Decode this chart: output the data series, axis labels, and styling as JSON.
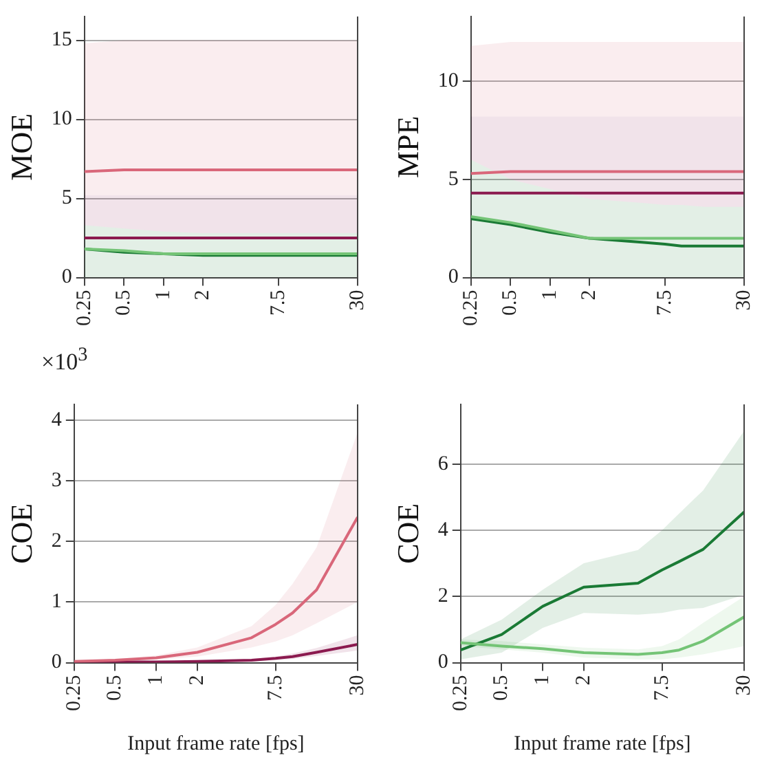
{
  "chart_data": [
    {
      "type": "line",
      "ylabel": "MOE",
      "log": "x",
      "grid": "y",
      "legend": false,
      "x": [
        0.25,
        0.5,
        1,
        2,
        5,
        7.5,
        10,
        15,
        30
      ],
      "xlim": [
        0.25,
        30
      ],
      "xticks": [
        0.25,
        0.5,
        1,
        2,
        7.5,
        30
      ],
      "ylim": [
        0,
        16.5
      ],
      "yticks": [
        0,
        5,
        10,
        15
      ],
      "series": [
        {
          "color": "#d9677a",
          "values": [
            6.7,
            6.8,
            6.8,
            6.8,
            6.8,
            6.8,
            6.8,
            6.8,
            6.8
          ],
          "lower": [
            5.2,
            5.2,
            5.2,
            5.2,
            5.2,
            5.2,
            5.2,
            5.2,
            5.2
          ],
          "upper": [
            14.8,
            15,
            15,
            15,
            15,
            15,
            15,
            15,
            15
          ]
        },
        {
          "color": "#8b1a4f",
          "values": [
            2.5,
            2.5,
            2.5,
            2.5,
            2.5,
            2.5,
            2.5,
            2.5,
            2.5
          ],
          "lower": [
            3.3,
            3.1,
            2.9,
            2.8,
            2.8,
            2.8,
            2.8,
            2.8,
            2.8
          ],
          "upper": [
            5.2,
            5.2,
            5.2,
            5.2,
            5.2,
            5.2,
            5.2,
            5.2,
            5.2
          ]
        },
        {
          "color": "#74c476",
          "values": [
            1.8,
            1.7,
            1.5,
            1.5,
            1.5,
            1.5,
            1.5,
            1.5,
            1.5
          ]
        },
        {
          "color": "#1a7a35",
          "values": [
            1.8,
            1.6,
            1.5,
            1.4,
            1.4,
            1.4,
            1.4,
            1.4,
            1.4
          ],
          "lower": [
            0,
            0,
            0,
            0,
            0,
            0,
            0,
            0,
            0
          ],
          "upper": [
            3.3,
            3.1,
            2.9,
            2.8,
            2.8,
            2.8,
            2.8,
            2.8,
            2.8
          ]
        }
      ]
    },
    {
      "type": "line",
      "ylabel": "MPE",
      "log": "x",
      "grid": "y",
      "legend": false,
      "x": [
        0.25,
        0.5,
        1,
        2,
        5,
        7.5,
        10,
        15,
        30
      ],
      "xlim": [
        0.25,
        30
      ],
      "xticks": [
        0.25,
        0.5,
        1,
        2,
        7.5,
        30
      ],
      "ylim": [
        0,
        13.3
      ],
      "yticks": [
        0,
        5,
        10
      ],
      "series": [
        {
          "color": "#d9677a",
          "values": [
            5.3,
            5.4,
            5.4,
            5.4,
            5.4,
            5.4,
            5.4,
            5.4,
            5.4
          ],
          "lower": [
            8.2,
            8.2,
            8.2,
            8.2,
            8.2,
            8.2,
            8.2,
            8.2,
            8.2
          ],
          "upper": [
            11.8,
            12,
            12,
            12,
            12,
            12,
            12,
            12,
            12
          ]
        },
        {
          "color": "#8b1a4f",
          "values": [
            4.3,
            4.3,
            4.3,
            4.3,
            4.3,
            4.3,
            4.3,
            4.3,
            4.3
          ],
          "lower": [
            6,
            5,
            4.5,
            4,
            3.8,
            3.7,
            3.7,
            3.6,
            3.6
          ],
          "upper": [
            8.2,
            8.2,
            8.2,
            8.2,
            8.2,
            8.2,
            8.2,
            8.2,
            8.2
          ]
        },
        {
          "color": "#74c476",
          "values": [
            3.1,
            2.8,
            2.4,
            2,
            2,
            2,
            2,
            2,
            2
          ]
        },
        {
          "color": "#1a7a35",
          "values": [
            3,
            2.7,
            2.3,
            2,
            1.8,
            1.7,
            1.6,
            1.6,
            1.6
          ],
          "lower": [
            0,
            0,
            0,
            0,
            0,
            0,
            0,
            0,
            0
          ],
          "upper": [
            6,
            5,
            4.5,
            4,
            3.8,
            3.7,
            3.7,
            3.6,
            3.6
          ]
        }
      ]
    },
    {
      "type": "line",
      "ylabel": "COE",
      "xlabel": "Input frame rate [fps]",
      "annotations": [
        "×10$^{3}$"
      ],
      "log": "x",
      "grid": "y",
      "legend": false,
      "x": [
        0.25,
        0.5,
        1,
        2,
        5,
        7.5,
        10,
        15,
        30
      ],
      "xlim": [
        0.25,
        30
      ],
      "xticks": [
        0.25,
        0.5,
        1,
        2,
        7.5,
        30
      ],
      "ylim": [
        0,
        4.26
      ],
      "yticks": [
        0,
        1,
        2,
        3,
        4
      ],
      "series": [
        {
          "color": "#d9677a",
          "values": [
            0.02,
            0.04,
            0.08,
            0.17,
            0.41,
            0.63,
            0.82,
            1.2,
            2.4
          ],
          "lower": [
            0.01,
            0.02,
            0.05,
            0.1,
            0.25,
            0.35,
            0.45,
            0.65,
            1
          ],
          "upper": [
            0.03,
            0.06,
            0.12,
            0.25,
            0.6,
            0.95,
            1.3,
            1.9,
            3.8
          ]
        },
        {
          "color": "#8b1a4f",
          "values": [
            0.01,
            0.01,
            0.01,
            0.02,
            0.04,
            0.07,
            0.1,
            0.17,
            0.3
          ],
          "lower": [
            0,
            0,
            0,
            0.01,
            0.02,
            0.04,
            0.06,
            0.11,
            0.2
          ],
          "upper": [
            0.02,
            0.02,
            0.02,
            0.03,
            0.06,
            0.1,
            0.15,
            0.24,
            0.45
          ]
        }
      ]
    },
    {
      "type": "line",
      "ylabel": "COE",
      "xlabel": "Input frame rate [fps]",
      "log": "x",
      "grid": "y",
      "legend": false,
      "x": [
        0.25,
        0.5,
        1,
        2,
        5,
        7.5,
        10,
        15,
        30
      ],
      "xlim": [
        0.25,
        30
      ],
      "xticks": [
        0.25,
        0.5,
        1,
        2,
        7.5,
        30
      ],
      "ylim": [
        0,
        7.8
      ],
      "yticks": [
        0,
        2,
        4,
        6
      ],
      "series": [
        {
          "color": "#74c476",
          "values": [
            0.6,
            0.5,
            0.42,
            0.3,
            0.25,
            0.3,
            0.38,
            0.65,
            1.38
          ],
          "lower": [
            0.5,
            0.4,
            0.3,
            0.15,
            0.1,
            0.1,
            0.15,
            0.25,
            0.5
          ],
          "upper": [
            0.7,
            0.65,
            0.55,
            0.45,
            0.4,
            0.5,
            0.7,
            1.2,
            2
          ]
        },
        {
          "color": "#1a7a35",
          "values": [
            0.38,
            0.85,
            1.7,
            2.28,
            2.4,
            2.8,
            3.05,
            3.42,
            4.55
          ],
          "lower": [
            0.1,
            0.3,
            1.05,
            1.5,
            1.45,
            1.5,
            1.6,
            1.65,
            2.05
          ],
          "upper": [
            0.7,
            1.3,
            2.2,
            3,
            3.4,
            4,
            4.5,
            5.2,
            7
          ]
        }
      ]
    }
  ]
}
